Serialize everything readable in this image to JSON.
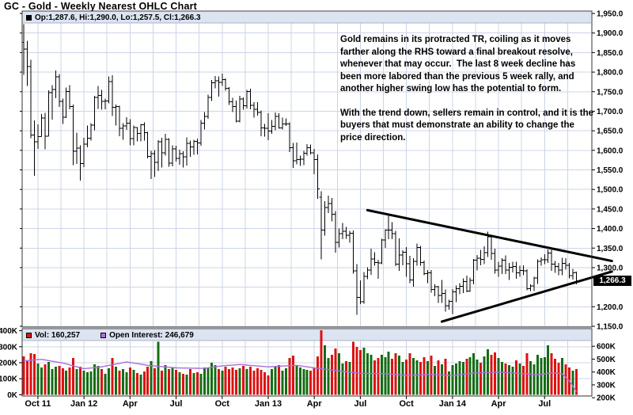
{
  "title": "GC - Gold - Weekly Nearest OHLC Chart",
  "price_panel": {
    "ohlc_legend": "Op:1,287.6, Hi:1,290.0, Lo:1,257.5, Cl:1,266.3"
  },
  "volume_panel": {
    "vol_legend": "Vol: 160,257",
    "oi_legend": "Open Interest: 246,679"
  },
  "annotation": {
    "p1": "Gold remains in its protracted TR, coiling as it moves farther along the RHS toward a final breakout resolve, whenever that may occur.  The last 8 week decline has been more labored than the previous 5 week rally, and another higher swing low has the potential to form.",
    "p2": "With the trend down, sellers remain in control, and it is the buyers that must demonstrate an ability to change the price direction."
  },
  "last_price": {
    "value": 1266.3,
    "label": "1,266.3"
  },
  "colors": {
    "bar": "#000000",
    "up_volume": "#156c15",
    "down_volume": "#dd1111",
    "open_interest": "#a96fd8",
    "grid": "#ccd4e6",
    "border": "#333333",
    "legend_bg": "#dce4f1",
    "legend_edge": "#a8b4c8",
    "trendline": "#000000"
  },
  "chart_data": {
    "type": "ohlc",
    "title": "GC - Gold - Weekly Nearest OHLC Chart",
    "period": "weekly",
    "price_axis_range": [
      1150,
      1950
    ],
    "price_ticks": [
      1950,
      1900,
      1850,
      1800,
      1750,
      1700,
      1650,
      1600,
      1550,
      1500,
      1450,
      1400,
      1350,
      1300,
      1200,
      1150
    ],
    "volume_ticks_k": [
      400,
      300,
      200,
      100,
      0
    ],
    "oi_ticks_k": [
      600,
      500,
      400,
      300,
      200
    ],
    "x_labels": [
      {
        "week": 4,
        "label": "Oct 11"
      },
      {
        "week": 17,
        "label": "Jan 12"
      },
      {
        "week": 30,
        "label": "Apr"
      },
      {
        "week": 43,
        "label": "Jul"
      },
      {
        "week": 56,
        "label": "Oct"
      },
      {
        "week": 69,
        "label": "Jan 13"
      },
      {
        "week": 82,
        "label": "Apr"
      },
      {
        "week": 95,
        "label": "Jul"
      },
      {
        "week": 108,
        "label": "Oct"
      },
      {
        "week": 121,
        "label": "Jan 14"
      },
      {
        "week": 134,
        "label": "Apr"
      },
      {
        "week": 147,
        "label": "Jul"
      }
    ],
    "bars": [
      [
        1876,
        1923,
        1793,
        1859
      ],
      [
        1859,
        1880,
        1765,
        1814
      ],
      [
        1814,
        1832,
        1631,
        1639
      ],
      [
        1639,
        1677,
        1535,
        1622
      ],
      [
        1622,
        1666,
        1604,
        1635
      ],
      [
        1635,
        1693,
        1635,
        1683
      ],
      [
        1683,
        1696,
        1603,
        1636
      ],
      [
        1636,
        1754,
        1636,
        1747
      ],
      [
        1747,
        1767,
        1679,
        1756
      ],
      [
        1756,
        1804,
        1733,
        1788
      ],
      [
        1788,
        1795,
        1711,
        1725
      ],
      [
        1725,
        1732,
        1667,
        1685
      ],
      [
        1685,
        1761,
        1683,
        1751
      ],
      [
        1751,
        1767,
        1705,
        1712
      ],
      [
        1712,
        1717,
        1562,
        1598
      ],
      [
        1598,
        1645,
        1565,
        1606
      ],
      [
        1606,
        1613,
        1523,
        1566
      ],
      [
        1566,
        1632,
        1557,
        1616
      ],
      [
        1616,
        1663,
        1608,
        1631
      ],
      [
        1631,
        1670,
        1625,
        1664
      ],
      [
        1664,
        1739,
        1651,
        1735
      ],
      [
        1735,
        1765,
        1706,
        1740
      ],
      [
        1740,
        1755,
        1704,
        1725
      ],
      [
        1725,
        1732,
        1705,
        1726
      ],
      [
        1726,
        1789,
        1720,
        1776
      ],
      [
        1776,
        1792,
        1688,
        1710
      ],
      [
        1710,
        1717,
        1663,
        1712
      ],
      [
        1712,
        1714,
        1636,
        1656
      ],
      [
        1656,
        1669,
        1627,
        1662
      ],
      [
        1662,
        1685,
        1652,
        1669
      ],
      [
        1669,
        1680,
        1613,
        1630
      ],
      [
        1630,
        1663,
        1613,
        1658
      ],
      [
        1658,
        1659,
        1623,
        1643
      ],
      [
        1643,
        1667,
        1623,
        1665
      ],
      [
        1665,
        1672,
        1625,
        1645
      ],
      [
        1645,
        1647,
        1579,
        1584
      ],
      [
        1584,
        1599,
        1527,
        1592
      ],
      [
        1592,
        1601,
        1532,
        1569
      ],
      [
        1569,
        1626,
        1547,
        1622
      ],
      [
        1622,
        1632,
        1556,
        1594
      ],
      [
        1594,
        1642,
        1586,
        1628
      ],
      [
        1628,
        1631,
        1558,
        1567
      ],
      [
        1567,
        1613,
        1559,
        1604
      ],
      [
        1604,
        1612,
        1571,
        1579
      ],
      [
        1579,
        1602,
        1563,
        1592
      ],
      [
        1592,
        1598,
        1556,
        1583
      ],
      [
        1583,
        1633,
        1561,
        1618
      ],
      [
        1618,
        1625,
        1583,
        1609
      ],
      [
        1609,
        1627,
        1588,
        1623
      ],
      [
        1623,
        1630,
        1590,
        1619
      ],
      [
        1619,
        1678,
        1612,
        1670
      ],
      [
        1670,
        1698,
        1653,
        1687
      ],
      [
        1687,
        1742,
        1681,
        1735
      ],
      [
        1735,
        1780,
        1726,
        1773
      ],
      [
        1773,
        1790,
        1759,
        1778
      ],
      [
        1778,
        1789,
        1737,
        1774
      ],
      [
        1774,
        1796,
        1765,
        1781
      ],
      [
        1781,
        1784,
        1753,
        1759
      ],
      [
        1759,
        1762,
        1716,
        1724
      ],
      [
        1724,
        1734,
        1698,
        1712
      ],
      [
        1712,
        1727,
        1672,
        1675
      ],
      [
        1675,
        1739,
        1672,
        1731
      ],
      [
        1731,
        1735,
        1704,
        1714
      ],
      [
        1714,
        1755,
        1707,
        1751
      ],
      [
        1751,
        1758,
        1705,
        1715
      ],
      [
        1715,
        1723,
        1684,
        1705
      ],
      [
        1705,
        1723,
        1689,
        1697
      ],
      [
        1697,
        1702,
        1636,
        1657
      ],
      [
        1657,
        1667,
        1635,
        1656
      ],
      [
        1656,
        1695,
        1626,
        1649
      ],
      [
        1649,
        1678,
        1642,
        1661
      ],
      [
        1661,
        1697,
        1651,
        1687
      ],
      [
        1687,
        1695,
        1655,
        1657
      ],
      [
        1657,
        1684,
        1653,
        1667
      ],
      [
        1667,
        1682,
        1662,
        1667
      ],
      [
        1667,
        1672,
        1596,
        1607
      ],
      [
        1607,
        1619,
        1555,
        1573
      ],
      [
        1573,
        1620,
        1564,
        1576
      ],
      [
        1576,
        1586,
        1560,
        1577
      ],
      [
        1577,
        1599,
        1562,
        1593
      ],
      [
        1593,
        1616,
        1586,
        1607
      ],
      [
        1607,
        1615,
        1589,
        1594
      ],
      [
        1594,
        1604,
        1539,
        1576
      ],
      [
        1576,
        1590,
        1476,
        1501
      ],
      [
        1480,
        1495,
        1321,
        1396
      ],
      [
        1396,
        1470,
        1382,
        1454
      ],
      [
        1454,
        1484,
        1440,
        1464
      ],
      [
        1464,
        1478,
        1418,
        1437
      ],
      [
        1437,
        1445,
        1338,
        1365
      ],
      [
        1365,
        1400,
        1352,
        1387
      ],
      [
        1387,
        1414,
        1373,
        1393
      ],
      [
        1393,
        1404,
        1374,
        1383
      ],
      [
        1383,
        1394,
        1364,
        1388
      ],
      [
        1388,
        1395,
        1285,
        1292
      ],
      [
        1292,
        1309,
        1179,
        1224
      ],
      [
        1224,
        1267,
        1207,
        1213
      ],
      [
        1213,
        1289,
        1208,
        1278
      ],
      [
        1278,
        1301,
        1271,
        1294
      ],
      [
        1294,
        1348,
        1282,
        1322
      ],
      [
        1322,
        1339,
        1305,
        1313
      ],
      [
        1313,
        1320,
        1272,
        1312
      ],
      [
        1312,
        1374,
        1309,
        1371
      ],
      [
        1371,
        1398,
        1351,
        1396
      ],
      [
        1396,
        1434,
        1373,
        1396
      ],
      [
        1396,
        1416,
        1373,
        1387
      ],
      [
        1387,
        1394,
        1304,
        1309
      ],
      [
        1309,
        1375,
        1292,
        1332
      ],
      [
        1332,
        1344,
        1306,
        1339
      ],
      [
        1339,
        1353,
        1277,
        1310
      ],
      [
        1310,
        1330,
        1260,
        1268
      ],
      [
        1268,
        1324,
        1251,
        1316
      ],
      [
        1316,
        1362,
        1305,
        1352
      ],
      [
        1352,
        1356,
        1305,
        1313
      ],
      [
        1313,
        1318,
        1281,
        1285
      ],
      [
        1285,
        1294,
        1260,
        1287
      ],
      [
        1287,
        1294,
        1236,
        1244
      ],
      [
        1244,
        1257,
        1227,
        1251
      ],
      [
        1251,
        1253,
        1210,
        1229
      ],
      [
        1229,
        1268,
        1210,
        1234
      ],
      [
        1234,
        1244,
        1187,
        1203
      ],
      [
        1203,
        1218,
        1193,
        1214
      ],
      [
        1214,
        1245,
        1181,
        1238
      ],
      [
        1238,
        1254,
        1212,
        1246
      ],
      [
        1246,
        1260,
        1232,
        1252
      ],
      [
        1252,
        1273,
        1235,
        1264
      ],
      [
        1264,
        1280,
        1237,
        1240
      ],
      [
        1240,
        1275,
        1238,
        1267
      ],
      [
        1267,
        1322,
        1257,
        1319
      ],
      [
        1319,
        1332,
        1293,
        1324
      ],
      [
        1324,
        1345,
        1306,
        1321
      ],
      [
        1321,
        1355,
        1309,
        1338
      ],
      [
        1338,
        1392,
        1327,
        1379
      ],
      [
        1379,
        1383,
        1320,
        1336
      ],
      [
        1336,
        1348,
        1285,
        1294
      ],
      [
        1294,
        1315,
        1277,
        1304
      ],
      [
        1304,
        1324,
        1284,
        1319
      ],
      [
        1319,
        1331,
        1284,
        1294
      ],
      [
        1294,
        1312,
        1268,
        1301
      ],
      [
        1301,
        1315,
        1288,
        1303
      ],
      [
        1303,
        1315,
        1272,
        1287
      ],
      [
        1287,
        1305,
        1277,
        1293
      ],
      [
        1293,
        1306,
        1281,
        1292
      ],
      [
        1292,
        1296,
        1242,
        1246
      ],
      [
        1246,
        1257,
        1240,
        1253
      ],
      [
        1253,
        1277,
        1240,
        1274
      ],
      [
        1274,
        1321,
        1258,
        1316
      ],
      [
        1316,
        1326,
        1305,
        1320
      ],
      [
        1320,
        1334,
        1309,
        1320
      ],
      [
        1320,
        1346,
        1312,
        1337
      ],
      [
        1337,
        1345,
        1292,
        1309
      ],
      [
        1309,
        1317,
        1287,
        1303
      ],
      [
        1303,
        1312,
        1281,
        1294
      ],
      [
        1294,
        1325,
        1281,
        1311
      ],
      [
        1311,
        1324,
        1295,
        1306
      ],
      [
        1306,
        1312,
        1273,
        1280
      ],
      [
        1280,
        1297,
        1270,
        1287
      ],
      [
        1287.6,
        1290.0,
        1257.5,
        1266.3
      ]
    ],
    "volumes_k": [
      240,
      210,
      260,
      255,
      195,
      170,
      190,
      205,
      160,
      175,
      180,
      165,
      150,
      170,
      230,
      160,
      175,
      150,
      140,
      145,
      190,
      180,
      160,
      130,
      165,
      230,
      175,
      150,
      160,
      140,
      170,
      155,
      135,
      125,
      145,
      175,
      210,
      165,
      330,
      150,
      185,
      160,
      170,
      155,
      140,
      130,
      125,
      160,
      135,
      140,
      130,
      170,
      165,
      200,
      185,
      160,
      150,
      175,
      160,
      170,
      155,
      165,
      180,
      160,
      175,
      150,
      165,
      155,
      140,
      120,
      160,
      175,
      185,
      150,
      165,
      230,
      245,
      180,
      170,
      160,
      155,
      150,
      170,
      240,
      420,
      310,
      230,
      250,
      290,
      260,
      195,
      210,
      205,
      330,
      300,
      280,
      295,
      260,
      250,
      215,
      230,
      250,
      235,
      270,
      225,
      260,
      245,
      205,
      220,
      260,
      230,
      215,
      205,
      235,
      210,
      245,
      180,
      215,
      190,
      225,
      145,
      185,
      195,
      210,
      205,
      225,
      235,
      260,
      220,
      200,
      240,
      285,
      250,
      265,
      230,
      205,
      195,
      185,
      175,
      215,
      195,
      180,
      260,
      210,
      190,
      250,
      230,
      235,
      310,
      260,
      225,
      200,
      230,
      190,
      170,
      150,
      160.257
    ],
    "open_interest_waypoints_k": [
      [
        0,
        487
      ],
      [
        5,
        498
      ],
      [
        11,
        470
      ],
      [
        17,
        425
      ],
      [
        22,
        440
      ],
      [
        29,
        478
      ],
      [
        35,
        452
      ],
      [
        43,
        432
      ],
      [
        51,
        428
      ],
      [
        56,
        448
      ],
      [
        61,
        458
      ],
      [
        69,
        440
      ],
      [
        77,
        452
      ],
      [
        82,
        432
      ],
      [
        87,
        415
      ],
      [
        95,
        390
      ],
      [
        103,
        386
      ],
      [
        108,
        374
      ],
      [
        115,
        382
      ],
      [
        121,
        372
      ],
      [
        127,
        392
      ],
      [
        134,
        399
      ],
      [
        139,
        391
      ],
      [
        145,
        379
      ],
      [
        149,
        393
      ],
      [
        152,
        386
      ],
      [
        154,
        330
      ],
      [
        156,
        247
      ]
    ],
    "trendlines": [
      {
        "from_week": 97,
        "from_price": 1447,
        "to_week": 166,
        "to_price": 1317
      },
      {
        "from_week": 118,
        "from_price": 1162,
        "to_week": 166,
        "to_price": 1290
      }
    ],
    "current_vol": 160257,
    "current_open_interest": 246679
  }
}
